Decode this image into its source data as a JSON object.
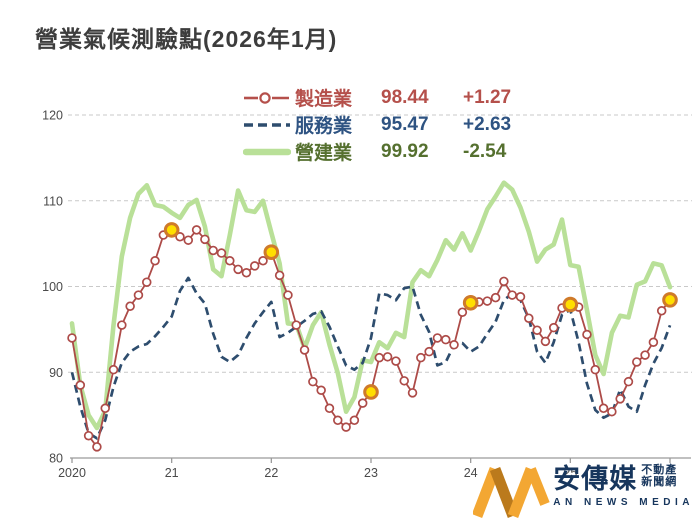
{
  "title": "營業氣候測驗點(2026年1月)",
  "legend": {
    "rows": [
      {
        "label": "製造業",
        "value": "98.44",
        "change": "+1.27"
      },
      {
        "label": "服務業",
        "value": "95.47",
        "change": "+2.63"
      },
      {
        "label": "營建業",
        "value": "99.92",
        "change": "-2.54"
      }
    ]
  },
  "watermark": {
    "brand": "安傳媒",
    "tagline_line1": "不動產",
    "tagline_line2": "新聞網",
    "subtext": "AN NEWS MEDIA"
  },
  "colors": {
    "manufacturing_line": "#ad4b48",
    "services_line": "#2e4d6e",
    "construction_line": "#b9e098",
    "highlight_fill": "#ffdf00",
    "highlight_ring": "#cf7a2a",
    "gridline": "#c9c9c9",
    "axis": "#9a9a9a",
    "tick_text": "#4a4a4a",
    "watermark_orange_light": "#f3a733",
    "watermark_orange_dark": "#bb7a1c",
    "watermark_navy": "#17365d"
  },
  "chart_data": {
    "type": "line",
    "title": "營業氣候測驗點(2026年1月)",
    "x_start": "2020-01",
    "x_end": "2026-01",
    "frequency": "monthly",
    "ylim": [
      80,
      122
    ],
    "y_tick_values": [
      80,
      90,
      100,
      110,
      120
    ],
    "x_tick_labels": [
      "2020",
      "21",
      "22",
      "23",
      "24",
      "25"
    ],
    "grid": "horizontal-dashed",
    "legend_position": "top-center",
    "note": "yellow markers highlight each January value of 製造業",
    "highlight_month_indices": [
      12,
      24,
      36,
      48,
      60,
      72
    ],
    "series": [
      {
        "name": "製造業",
        "latest": 98.44,
        "mom_change": 1.27,
        "style": "solid-with-circle-markers",
        "color": "#ad4b48",
        "values": [
          94.0,
          88.5,
          82.6,
          81.3,
          85.8,
          90.3,
          95.5,
          97.7,
          99.0,
          100.5,
          103.0,
          106.0,
          106.6,
          105.8,
          105.4,
          106.6,
          105.5,
          104.2,
          103.9,
          103.0,
          102.0,
          101.6,
          102.4,
          103.0,
          104.0,
          101.3,
          99.0,
          95.5,
          92.6,
          88.9,
          87.9,
          85.8,
          84.4,
          83.6,
          84.4,
          86.4,
          87.7,
          91.7,
          91.8,
          91.3,
          89.0,
          87.6,
          91.7,
          92.4,
          94.0,
          93.8,
          93.2,
          97.0,
          98.1,
          98.2,
          98.3,
          98.7,
          100.6,
          99.0,
          98.8,
          96.3,
          94.9,
          93.6,
          95.2,
          97.5,
          97.9,
          97.6,
          94.4,
          90.3,
          85.8,
          85.4,
          86.9,
          88.9,
          91.2,
          92.0,
          93.5,
          97.17,
          98.44
        ]
      },
      {
        "name": "服務業",
        "latest": 95.47,
        "mom_change": 2.63,
        "style": "dashed",
        "color": "#2e4d6e",
        "values": [
          90.0,
          86.0,
          82.9,
          82.3,
          84.4,
          88.3,
          91.1,
          92.4,
          93.0,
          93.3,
          94.2,
          95.3,
          96.5,
          99.5,
          101.0,
          99.2,
          98.0,
          94.5,
          91.8,
          91.2,
          92.0,
          94.0,
          95.7,
          97.0,
          98.2,
          94.1,
          94.6,
          95.3,
          96.0,
          96.8,
          97.1,
          95.3,
          93.0,
          90.8,
          90.3,
          91.1,
          94.0,
          99.2,
          99.0,
          98.4,
          99.8,
          100.0,
          96.7,
          94.7,
          90.8,
          91.2,
          93.2,
          93.4,
          92.4,
          93.0,
          94.5,
          95.9,
          98.4,
          99.2,
          98.4,
          96.3,
          92.4,
          91.1,
          93.5,
          96.7,
          97.3,
          93.5,
          88.7,
          85.6,
          84.7,
          85.2,
          88.0,
          86.0,
          85.4,
          88.5,
          91.0,
          92.84,
          95.47
        ]
      },
      {
        "name": "營建業",
        "latest": 99.92,
        "mom_change": -2.54,
        "style": "thick-solid",
        "color": "#b9e098",
        "values": [
          95.7,
          88.5,
          85.0,
          83.5,
          85.5,
          95.5,
          103.5,
          108.0,
          110.8,
          111.8,
          109.5,
          109.3,
          108.6,
          108.0,
          109.5,
          110.1,
          107.0,
          102.0,
          101.2,
          106.0,
          111.2,
          108.9,
          108.7,
          110.0,
          106.3,
          102.7,
          95.7,
          95.6,
          92.8,
          95.5,
          97.0,
          93.2,
          89.9,
          85.4,
          87.1,
          91.4,
          91.2,
          93.5,
          92.8,
          94.6,
          94.1,
          100.5,
          101.9,
          101.2,
          103.1,
          105.4,
          104.3,
          106.2,
          104.2,
          106.5,
          109.0,
          110.5,
          112.1,
          111.3,
          109.2,
          106.4,
          102.9,
          104.3,
          104.9,
          107.8,
          102.5,
          102.3,
          97.3,
          92.0,
          89.8,
          94.6,
          96.6,
          96.4,
          100.2,
          100.6,
          102.7,
          102.46,
          99.92
        ]
      }
    ]
  }
}
